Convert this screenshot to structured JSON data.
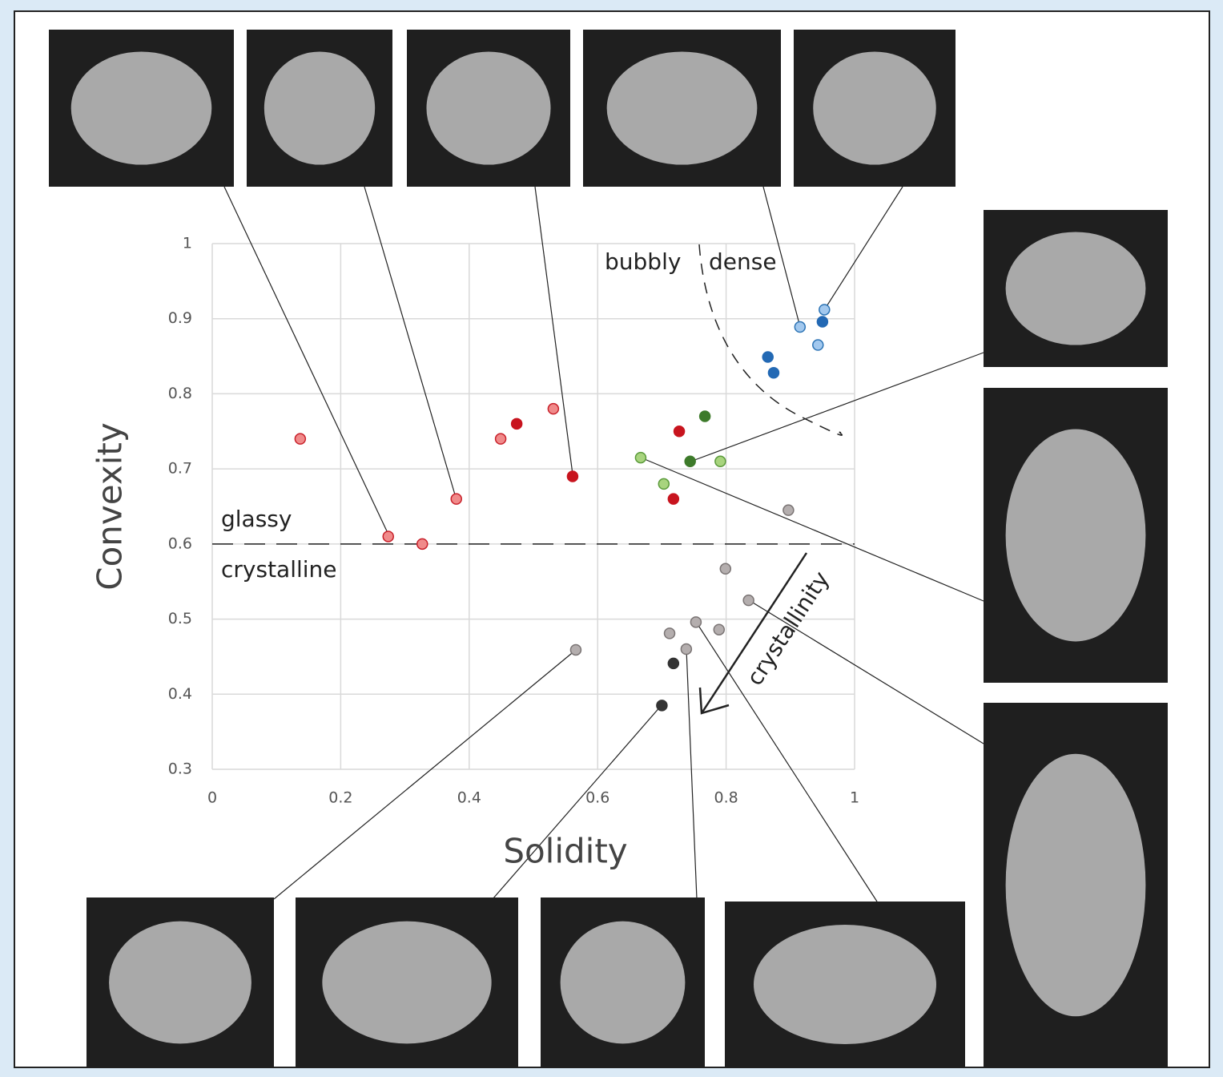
{
  "chart_data": {
    "type": "scatter",
    "x_label": "Solidity",
    "y_label": "Convexity",
    "xlim": [
      0,
      1
    ],
    "xticks": [
      0,
      0.2,
      0.4,
      0.6,
      0.8,
      1
    ],
    "ylim": [
      0.3,
      1
    ],
    "yticks": [
      0.3,
      0.4,
      0.5,
      0.6,
      0.7,
      0.8,
      0.9,
      1
    ],
    "grid": true,
    "reference_lines": [
      {
        "y": 0.6
      }
    ],
    "annotations": [
      "bubbly",
      "dense",
      "glassy",
      "crystalline",
      "crystallinity"
    ],
    "series": [
      {
        "color": "#f08a8a",
        "edge": "#c8202a",
        "x": [
          0.137,
          0.274,
          0.327,
          0.38,
          0.449,
          0.531
        ],
        "values": [
          0.74,
          0.61,
          0.6,
          0.66,
          0.74,
          0.78
        ]
      },
      {
        "color": "#c8141e",
        "edge": "#c8141e",
        "x": [
          0.474,
          0.561,
          0.727,
          0.718
        ],
        "values": [
          0.76,
          0.69,
          0.75,
          0.66
        ]
      },
      {
        "color": "#a8d47e",
        "edge": "#5a9a3a",
        "x": [
          0.667,
          0.703,
          0.791
        ],
        "values": [
          0.715,
          0.68,
          0.71
        ]
      },
      {
        "color": "#3d7a2a",
        "edge": "#3d7a2a",
        "x": [
          0.767,
          0.744
        ],
        "values": [
          0.77,
          0.71
        ]
      },
      {
        "color": "#a2c8ee",
        "edge": "#2e75b6",
        "x": [
          0.915,
          0.953,
          0.943
        ],
        "values": [
          0.889,
          0.912,
          0.865
        ]
      },
      {
        "color": "#2369b4",
        "edge": "#2369b4",
        "x": [
          0.95,
          0.865,
          0.874
        ],
        "values": [
          0.896,
          0.849,
          0.828
        ]
      },
      {
        "color": "#b4aeae",
        "edge": "#7a7474",
        "x": [
          0.897,
          0.799,
          0.835,
          0.753,
          0.789,
          0.712,
          0.738,
          0.566
        ],
        "values": [
          0.645,
          0.567,
          0.525,
          0.496,
          0.486,
          0.481,
          0.46,
          0.459
        ]
      },
      {
        "color": "#333333",
        "edge": "#333333",
        "x": [
          0.718,
          0.7
        ],
        "values": [
          0.441,
          0.385
        ]
      }
    ]
  }
}
